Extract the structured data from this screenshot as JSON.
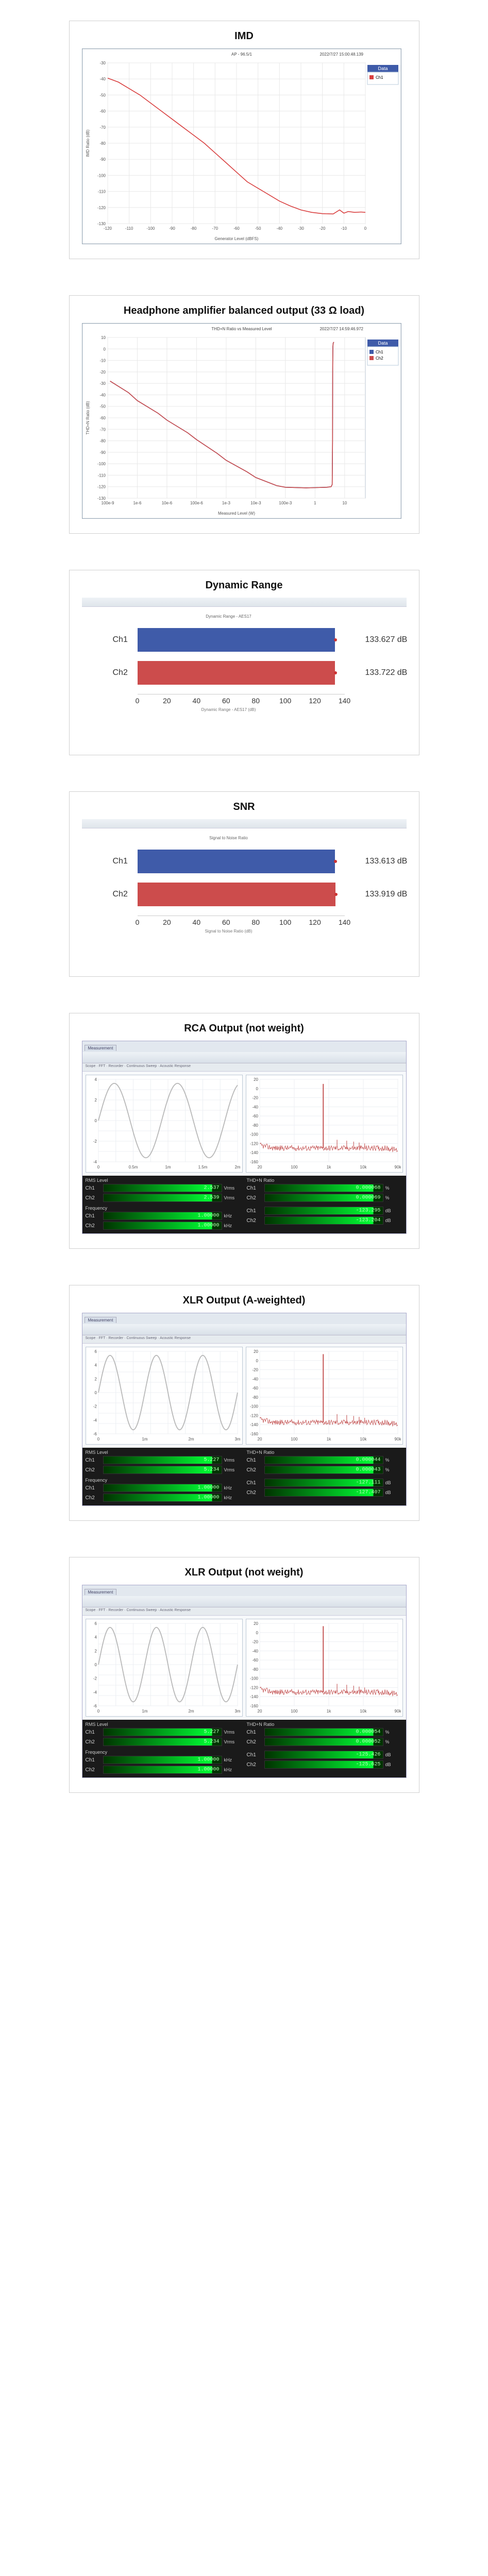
{
  "colors": {
    "blue": "#3f5ba9",
    "red": "#cc4c4c",
    "gridline": "#e8e8e8",
    "axis": "#888888",
    "series_line": "#d94040",
    "waveform": "#b8b8b8",
    "spectrum": "#c04848",
    "meter_green": "#00ff33",
    "meter_bg": "#1a1a1a",
    "panel_border": "#d0d0d0"
  },
  "panels": [
    {
      "id": "imd",
      "title": "IMD",
      "type": "line",
      "chart_title": "AP - 96.5/1",
      "timestamp": "2022/7/27 15:00:48.139",
      "x_label": "Generator Level (dBFS)",
      "y_label": "IMD Ratio (dB)",
      "x_axis": {
        "min": -120,
        "max": 0,
        "ticks": [
          -120,
          -110,
          -100,
          -90,
          -80,
          -70,
          -60,
          -50,
          -40,
          -30,
          -20,
          -10,
          0
        ]
      },
      "y_axis": {
        "min": -130,
        "max": -30,
        "ticks": [
          -130,
          -120,
          -110,
          -100,
          -90,
          -80,
          -70,
          -60,
          -50,
          -40,
          -30
        ]
      },
      "legend": [
        {
          "label": "Ch1",
          "color": "#d94040"
        }
      ],
      "series": [
        {
          "name": "Ch1",
          "color": "#d94040",
          "points": [
            [
              -120,
              -39.5
            ],
            [
              -115,
              -42
            ],
            [
              -110,
              -46
            ],
            [
              -105,
              -50
            ],
            [
              -100,
              -55
            ],
            [
              -95,
              -60
            ],
            [
              -90,
              -65
            ],
            [
              -85,
              -70
            ],
            [
              -80,
              -75
            ],
            [
              -75,
              -80
            ],
            [
              -70,
              -86
            ],
            [
              -65,
              -92
            ],
            [
              -60,
              -98
            ],
            [
              -55,
              -104
            ],
            [
              -50,
              -108
            ],
            [
              -45,
              -112
            ],
            [
              -40,
              -116
            ],
            [
              -35,
              -119
            ],
            [
              -30,
              -121.5
            ],
            [
              -25,
              -123
            ],
            [
              -20,
              -123.8
            ],
            [
              -15,
              -124
            ],
            [
              -12,
              -121.5
            ],
            [
              -10,
              -123.5
            ],
            [
              -8,
              -122.5
            ],
            [
              -5,
              -123
            ],
            [
              -2,
              -122.8
            ],
            [
              0,
              -123
            ]
          ]
        }
      ]
    },
    {
      "id": "hp_balanced",
      "title": "Headphone amplifier balanced output (33 Ω load)",
      "type": "line",
      "chart_title": "THD+N Ratio vs Measured Level",
      "timestamp": "2022/7/27 14:59:46.972",
      "x_label": "Measured Level (W)",
      "y_label": "THD+N Ratio (dB)",
      "x_axis": {
        "mode": "log",
        "min": 1e-07,
        "max": 50,
        "ticks": [
          1e-07,
          1e-06,
          1e-05,
          0.0001,
          0.001,
          0.01,
          0.1,
          1,
          10
        ],
        "tick_labels": [
          "100e-9",
          "1e-6",
          "10e-6",
          "100e-6",
          "1e-3",
          "10e-3",
          "100e-3",
          "1",
          "10"
        ]
      },
      "y_axis": {
        "min": -130,
        "max": 10,
        "ticks": [
          -130,
          -120,
          -110,
          -100,
          -90,
          -80,
          -70,
          -60,
          -50,
          -40,
          -30,
          -20,
          -10,
          0,
          10
        ]
      },
      "legend": [
        {
          "label": "Ch1",
          "color": "#3f5ba9"
        },
        {
          "label": "Ch2",
          "color": "#cc4c4c"
        }
      ],
      "series": [
        {
          "name": "Ch1",
          "color": "#3f5ba9",
          "points": [
            [
              1.2e-07,
              -28
            ],
            [
              5e-07,
              -38
            ],
            [
              1e-06,
              -45
            ],
            [
              5e-06,
              -56
            ],
            [
              1e-05,
              -62
            ],
            [
              5e-05,
              -73
            ],
            [
              0.0001,
              -79
            ],
            [
              0.0005,
              -91
            ],
            [
              0.001,
              -97
            ],
            [
              0.005,
              -107
            ],
            [
              0.01,
              -112
            ],
            [
              0.05,
              -119
            ],
            [
              0.1,
              -120.5
            ],
            [
              0.5,
              -121
            ],
            [
              1,
              -120.8
            ],
            [
              2.5,
              -120.5
            ],
            [
              3.5,
              -120
            ],
            [
              3.8,
              -118
            ],
            [
              3.9,
              -80
            ],
            [
              3.95,
              -20
            ],
            [
              4.0,
              2
            ],
            [
              4.1,
              5
            ],
            [
              4.3,
              6
            ]
          ]
        },
        {
          "name": "Ch2",
          "color": "#cc4c4c",
          "points": [
            [
              1.2e-07,
              -28
            ],
            [
              5e-07,
              -38
            ],
            [
              1e-06,
              -45
            ],
            [
              5e-06,
              -56
            ],
            [
              1e-05,
              -62
            ],
            [
              5e-05,
              -73
            ],
            [
              0.0001,
              -79
            ],
            [
              0.0005,
              -91
            ],
            [
              0.001,
              -97
            ],
            [
              0.005,
              -107
            ],
            [
              0.01,
              -112
            ],
            [
              0.05,
              -119
            ],
            [
              0.1,
              -120.5
            ],
            [
              0.5,
              -121
            ],
            [
              1,
              -120.8
            ],
            [
              2.5,
              -120.5
            ],
            [
              3.5,
              -120
            ],
            [
              3.8,
              -118
            ],
            [
              3.9,
              -80
            ],
            [
              3.95,
              -20
            ],
            [
              4.0,
              2
            ],
            [
              4.1,
              5
            ],
            [
              4.3,
              6
            ]
          ]
        }
      ]
    },
    {
      "id": "dyn_range",
      "title": "Dynamic Range",
      "type": "hbar",
      "timestamp": "2022/7/25 -",
      "chart_title": "Dynamic Range - AES17",
      "x_axis": {
        "min": 0,
        "max": 140,
        "ticks": [
          0,
          20,
          40,
          60,
          80,
          100,
          120,
          140
        ]
      },
      "x_label": "Dynamic Range - AES17 (dB)",
      "bars": [
        {
          "label": "Ch1",
          "value": 133.627,
          "unit": "dB",
          "color": "#3f5ba9"
        },
        {
          "label": "Ch2",
          "value": 133.722,
          "unit": "dB",
          "color": "#cc4c4c"
        }
      ]
    },
    {
      "id": "snr",
      "title": "SNR",
      "type": "hbar",
      "timestamp": "2022/7/25 -",
      "chart_title": "Signal to Noise Ratio",
      "x_axis": {
        "min": 0,
        "max": 140,
        "ticks": [
          0,
          20,
          40,
          60,
          80,
          100,
          120,
          140
        ]
      },
      "x_label": "Signal to Noise Ratio (dB)",
      "bars": [
        {
          "label": "Ch1",
          "value": 133.613,
          "unit": "dB",
          "color": "#3f5ba9"
        },
        {
          "label": "Ch2",
          "value": 133.919,
          "unit": "dB",
          "color": "#cc4c4c"
        }
      ]
    },
    {
      "id": "rca_out",
      "title": "RCA Output (not weight)",
      "type": "analyzer",
      "tab_label": "Measurement",
      "menu": "Scope · FFT · Recorder · Continuous Sweep · Acoustic Response",
      "wave": {
        "type": "sine",
        "cycles": 2.2,
        "amp": 0.95,
        "color": "#b8b8b8",
        "xlabel": "Time (ms)",
        "xticks": [
          "0",
          "0.5m",
          "1m",
          "1.5m",
          "2m"
        ],
        "ylabel": "V",
        "yticks": [
          "-4",
          "-2",
          "0",
          "2",
          "4"
        ]
      },
      "fft": {
        "peak_hz": 1000,
        "peak_db": 10,
        "floor_db": -130,
        "color": "#c04848",
        "xlabel": "Frequency (Hz)",
        "xticks": [
          "20",
          "100",
          "1k",
          "10k",
          "90k"
        ],
        "yticks": [
          "-160",
          "-140",
          "-120",
          "-100",
          "-80",
          "-60",
          "-40",
          "-20",
          "0",
          "20"
        ]
      },
      "meters": {
        "rms_level": {
          "title": "RMS Level",
          "unit": "Vrms",
          "ch1": "2.537",
          "ch2": "2.539"
        },
        "frequency": {
          "title": "Frequency",
          "unit": "kHz",
          "ch1": "1.00000",
          "ch2": "1.00000"
        },
        "thdn_ratio": {
          "title": "THD+N Ratio",
          "unit": "%",
          "ch1": "0.000068",
          "ch2": "0.000069"
        },
        "thdn_db": {
          "title": "",
          "unit": "dB",
          "ch1": "-123.295",
          "ch2": "-123.204"
        }
      }
    },
    {
      "id": "xlr_aw",
      "title": "XLR Output (A-weighted)",
      "type": "analyzer",
      "tab_label": "Measurement",
      "menu": "Scope · FFT · Recorder · Continuous Sweep · Acoustic Response",
      "wave": {
        "type": "sine",
        "cycles": 3.0,
        "amp": 0.95,
        "color": "#b8b8b8",
        "xlabel": "Time (ms)",
        "xticks": [
          "0",
          "1m",
          "2m",
          "3m"
        ],
        "ylabel": "V",
        "yticks": [
          "-6",
          "-4",
          "-2",
          "0",
          "2",
          "4",
          "6"
        ]
      },
      "fft": {
        "peak_hz": 1000,
        "peak_db": 14,
        "floor_db": -135,
        "color": "#c04848",
        "xlabel": "Frequency (Hz)",
        "xticks": [
          "20",
          "100",
          "1k",
          "10k",
          "90k"
        ],
        "yticks": [
          "-160",
          "-140",
          "-120",
          "-100",
          "-80",
          "-60",
          "-40",
          "-20",
          "0",
          "20"
        ]
      },
      "meters": {
        "rms_level": {
          "title": "RMS Level",
          "unit": "Vrms",
          "ch1": "5.227",
          "ch2": "5.234"
        },
        "frequency": {
          "title": "Frequency",
          "unit": "kHz",
          "ch1": "1.00000",
          "ch2": "1.00000"
        },
        "thdn_ratio": {
          "title": "THD+N Ratio",
          "unit": "%",
          "ch1": "0.000044",
          "ch2": "0.000043"
        },
        "thdn_db": {
          "title": "",
          "unit": "dB",
          "ch1": "-127.111",
          "ch2": "-127.407"
        }
      }
    },
    {
      "id": "xlr_nw",
      "title": "XLR Output (not weight)",
      "type": "analyzer",
      "tab_label": "Measurement",
      "menu": "Scope · FFT · Recorder · Continuous Sweep · Acoustic Response",
      "wave": {
        "type": "sine",
        "cycles": 3.0,
        "amp": 0.95,
        "color": "#b8b8b8",
        "xlabel": "Time (ms)",
        "xticks": [
          "0",
          "1m",
          "2m",
          "3m"
        ],
        "ylabel": "V",
        "yticks": [
          "-6",
          "-4",
          "-2",
          "0",
          "2",
          "4",
          "6"
        ]
      },
      "fft": {
        "peak_hz": 1000,
        "peak_db": 14,
        "floor_db": -130,
        "color": "#c04848",
        "xlabel": "Frequency (Hz)",
        "xticks": [
          "20",
          "100",
          "1k",
          "10k",
          "90k"
        ],
        "yticks": [
          "-160",
          "-140",
          "-120",
          "-100",
          "-80",
          "-60",
          "-40",
          "-20",
          "0",
          "20"
        ]
      },
      "meters": {
        "rms_level": {
          "title": "RMS Level",
          "unit": "Vrms",
          "ch1": "5.227",
          "ch2": "5.234"
        },
        "frequency": {
          "title": "Frequency",
          "unit": "kHz",
          "ch1": "1.00000",
          "ch2": "1.00000"
        },
        "thdn_ratio": {
          "title": "THD+N Ratio",
          "unit": "%",
          "ch1": "0.000054",
          "ch2": "0.000052"
        },
        "thdn_db": {
          "title": "",
          "unit": "dB",
          "ch1": "-125.426",
          "ch2": "-125.625"
        }
      }
    }
  ]
}
